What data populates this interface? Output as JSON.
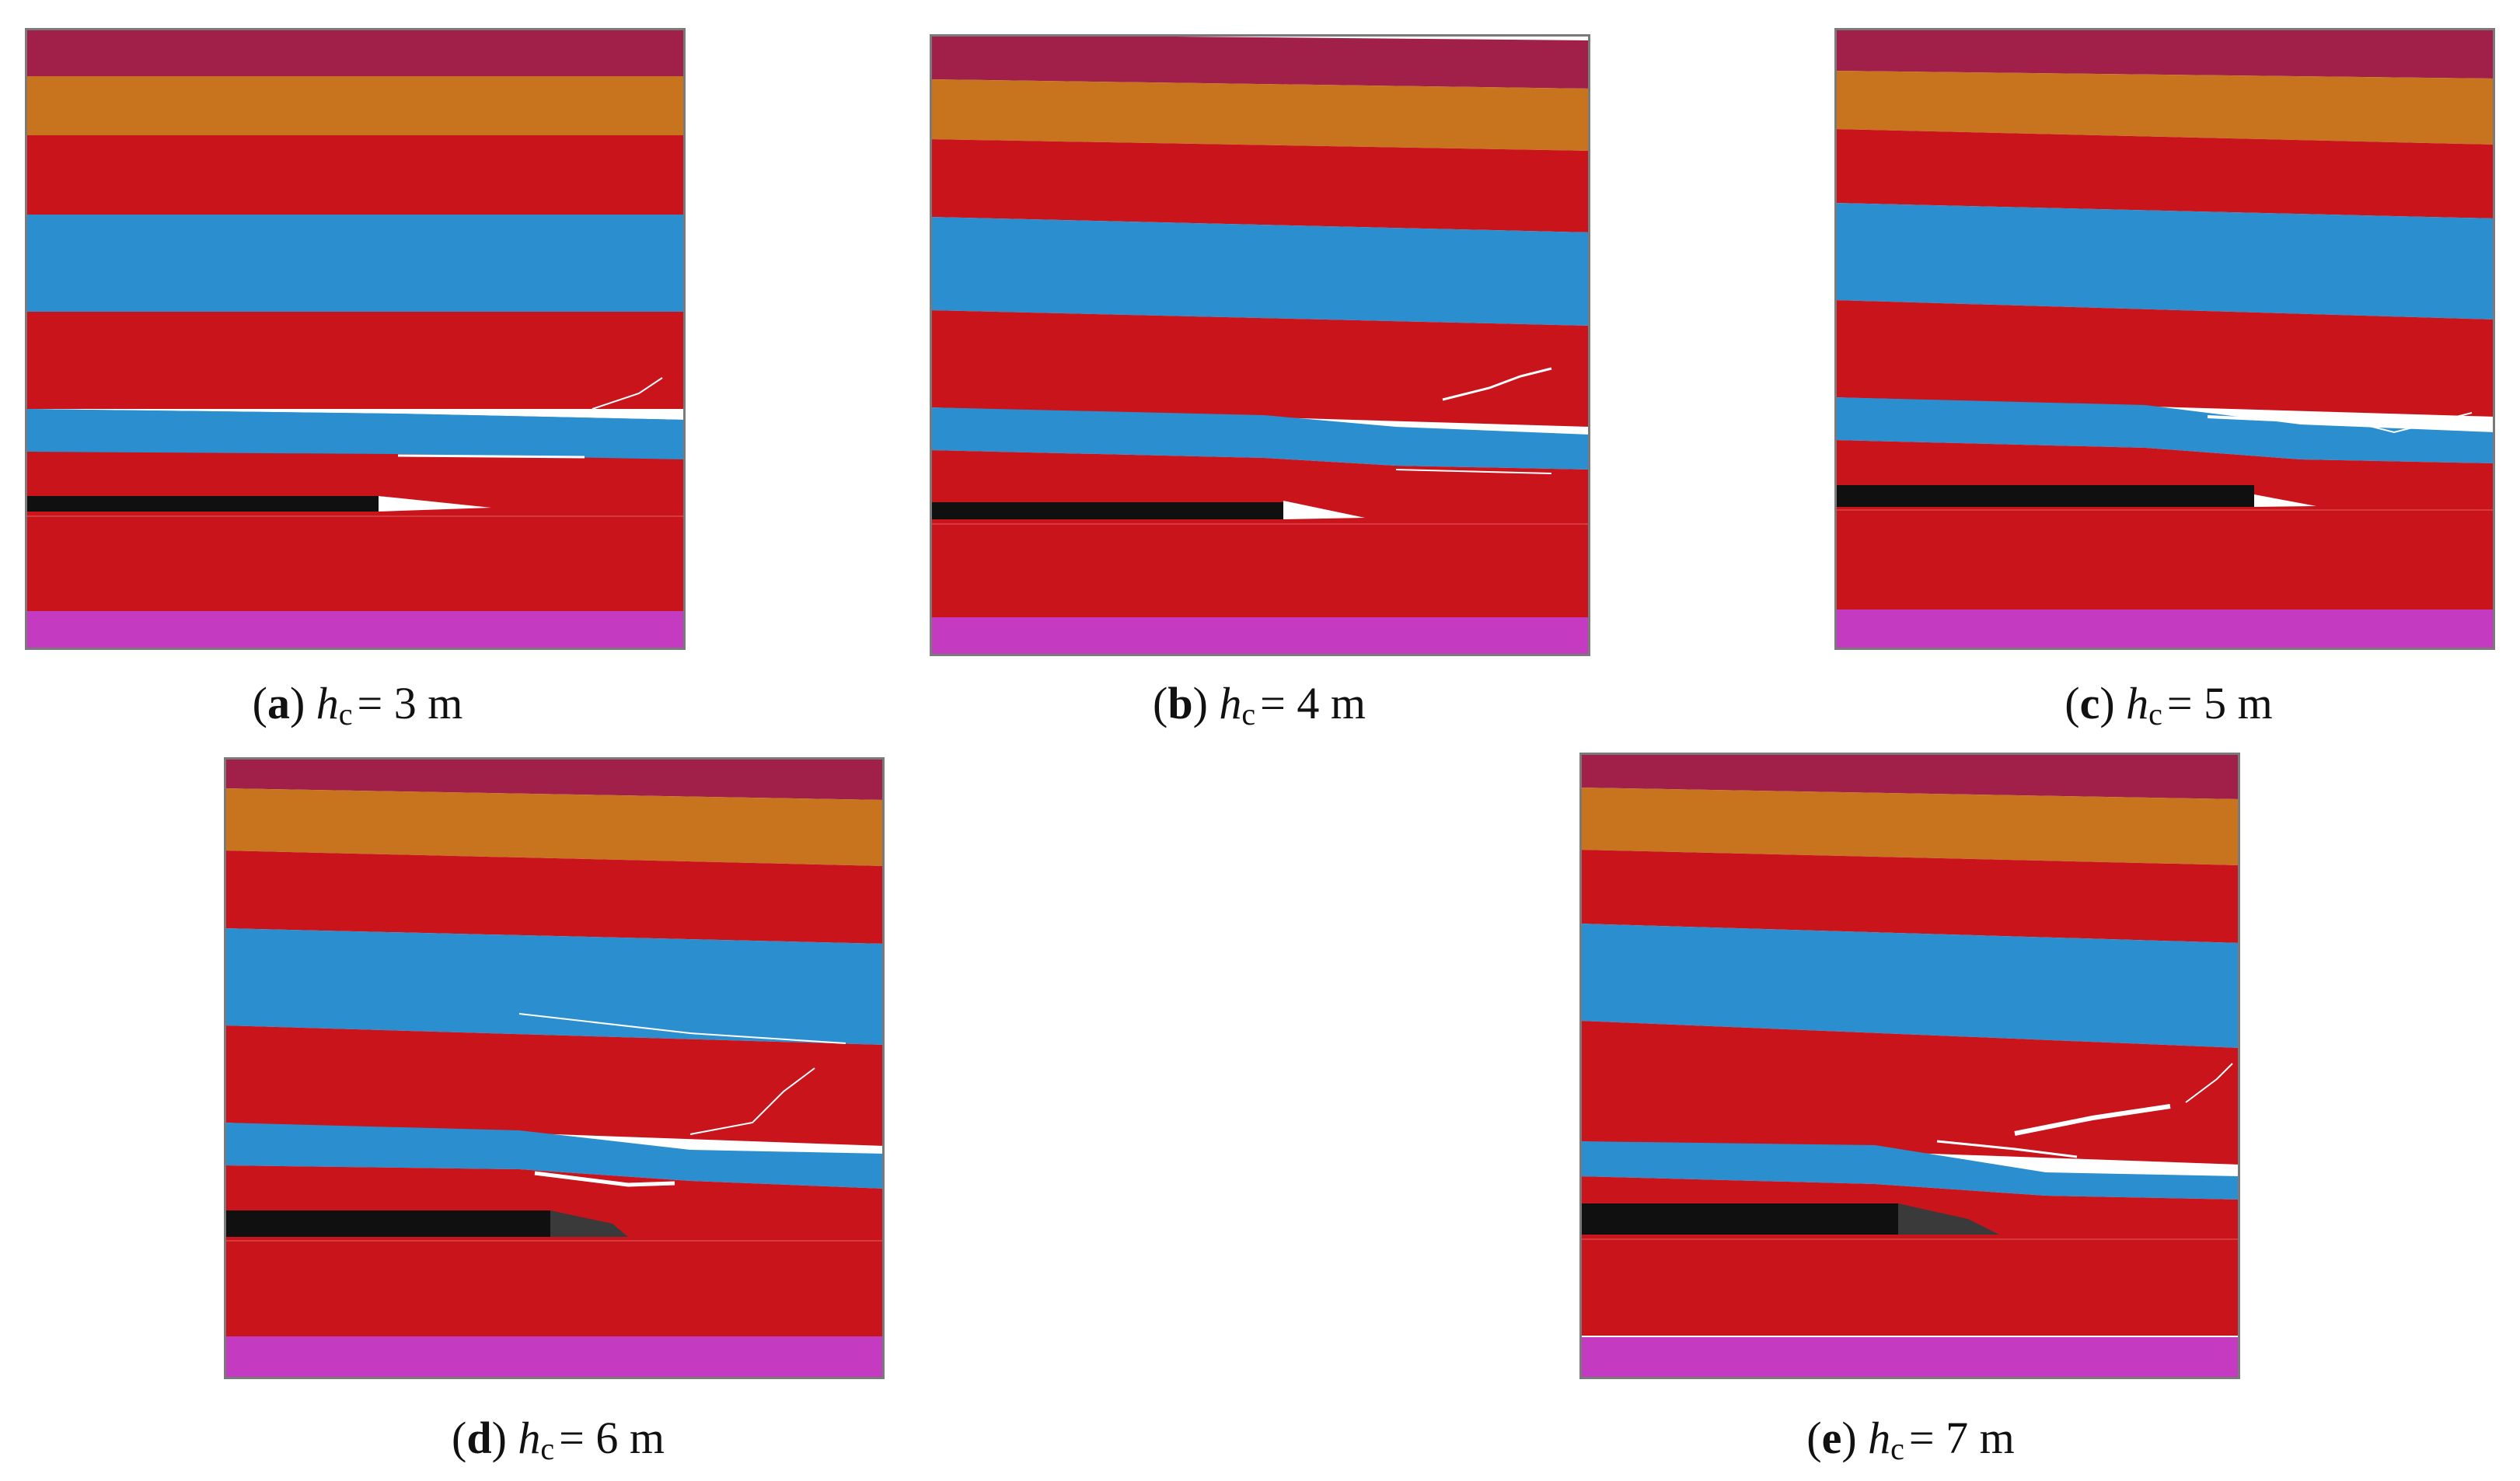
{
  "colors": {
    "top_layer": "#a0204a",
    "orange_layer": "#c8741f",
    "red_layer": "#c9141c",
    "blue_layer": "#2b8fcf",
    "coal_seam": "#101010",
    "bottom_layer": "#c43bc2",
    "crack": "#ffffff"
  },
  "panels": [
    {
      "id": "a",
      "label": "a",
      "symbol": "h",
      "subscript": "c",
      "value": "= 3 m"
    },
    {
      "id": "b",
      "label": "b",
      "symbol": "h",
      "subscript": "c",
      "value": "= 4 m"
    },
    {
      "id": "c",
      "label": "c",
      "symbol": "h",
      "subscript": "c",
      "value": "= 5 m"
    },
    {
      "id": "d",
      "label": "d",
      "symbol": "h",
      "subscript": "c",
      "value": "= 6 m"
    },
    {
      "id": "e",
      "label": "e",
      "symbol": "h",
      "subscript": "c",
      "value": "= 7 m"
    }
  ]
}
